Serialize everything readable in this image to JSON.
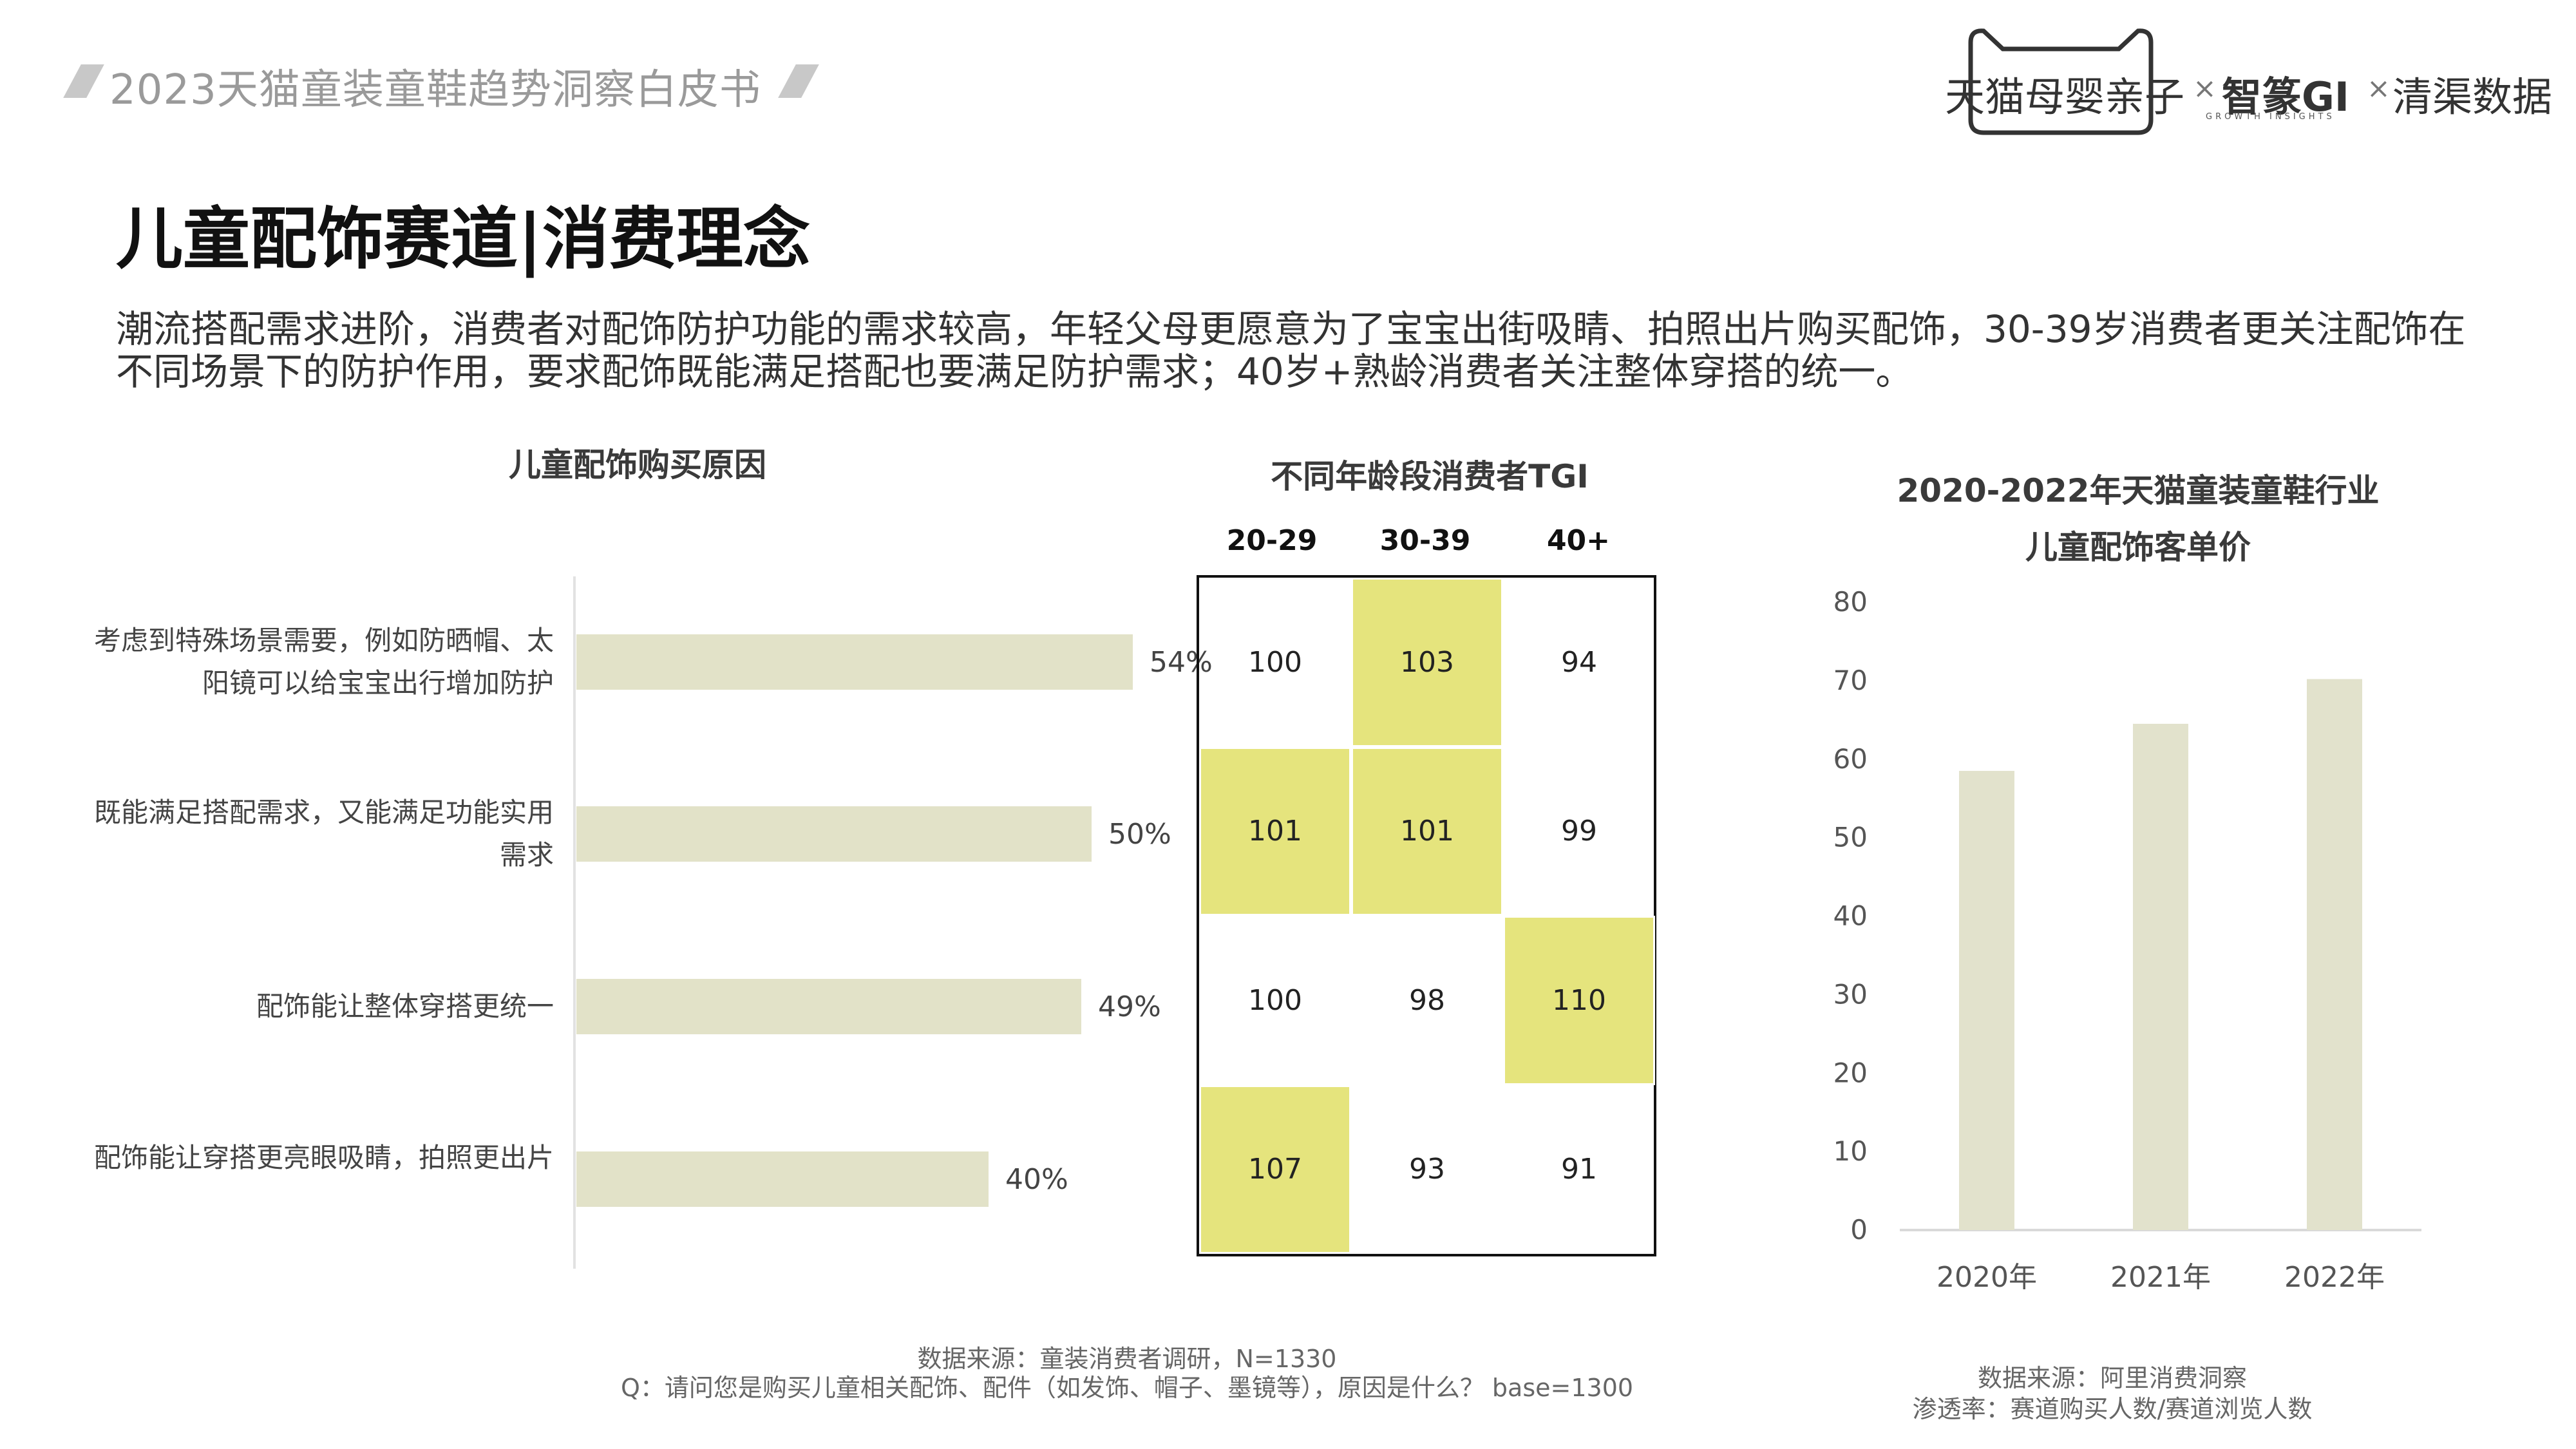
{
  "header": {
    "report_title": "2023天猫童装童鞋趋势洞察白皮书",
    "brands": [
      "天猫母婴亲子",
      "智篆GI",
      "清渠数据"
    ],
    "gi_subtitle": "GROWTH INSIGHTS",
    "separator": "×"
  },
  "page_title": "儿童配饰赛道|消费理念",
  "summary": "潮流搭配需求进阶，消费者对配饰防护功能的需求较高，年轻父母更愿意为了宝宝出街吸睛、拍照出片购买配饰，30-39岁消费者更关注配饰在不同场景下的防护作用，要求配饰既能满足搭配也要满足防护需求；40岁+熟龄消费者关注整体穿搭的统一。",
  "colors": {
    "bar": "#e2e2c8",
    "tgi_highlight": "#e5e47d",
    "col": "#e2e2cc"
  },
  "chart_data": [
    {
      "type": "bar",
      "orientation": "horizontal",
      "title": "儿童配饰购买原因",
      "categories": [
        "考虑到特殊场景需要，例如防晒帽、太阳镜可以给宝宝出行增加防护",
        "既能满足搭配需求，又能满足功能实用需求",
        "配饰能让整体穿搭更统一",
        "配饰能让穿搭更亮眼吸睛，拍照更出片"
      ],
      "values": [
        54,
        50,
        49,
        40
      ],
      "value_labels": [
        "54%",
        "50%",
        "49%",
        "40%"
      ],
      "unit": "%",
      "source": "数据来源：童装消费者调研，N=1330",
      "question": "Q：请问您是购买儿童相关配饰、配件（如发饰、帽子、墨镜等），原因是什么？ base=1300"
    },
    {
      "type": "table",
      "title": "不同年龄段消费者TGI",
      "columns": [
        "20-29",
        "30-39",
        "40+"
      ],
      "rows": [
        [
          100,
          103,
          94
        ],
        [
          101,
          101,
          99
        ],
        [
          100,
          98,
          110
        ],
        [
          107,
          93,
          91
        ]
      ],
      "highlight": [
        [
          false,
          true,
          false
        ],
        [
          true,
          true,
          false
        ],
        [
          false,
          false,
          true
        ],
        [
          true,
          false,
          false
        ]
      ]
    },
    {
      "type": "bar",
      "title": "2020-2022年天猫童装童鞋行业",
      "subtitle": "儿童配饰客单价",
      "categories": [
        "2020年",
        "2021年",
        "2022年"
      ],
      "values": [
        58.5,
        64.5,
        70.2
      ],
      "ylim": [
        0,
        80
      ],
      "yticks": [
        0,
        10,
        20,
        30,
        40,
        50,
        60,
        70,
        80
      ],
      "grid": false,
      "source": "数据来源：阿里消费洞察",
      "note": "渗透率：赛道购买人数/赛道浏览人数"
    }
  ]
}
